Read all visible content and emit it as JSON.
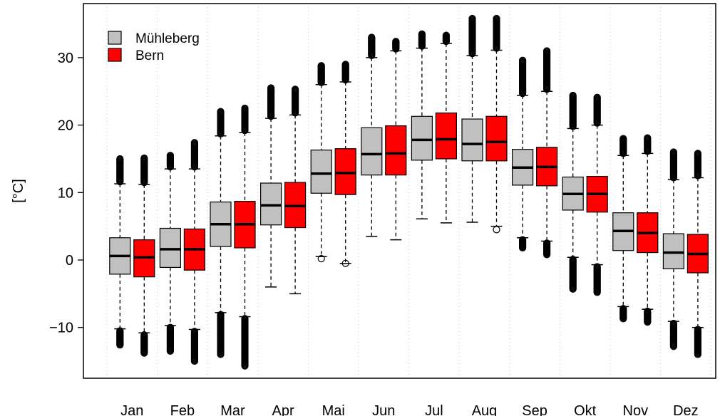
{
  "chart_data": {
    "type": "boxplot",
    "ylabel": "[°C]",
    "ylim": [
      -17.5,
      37.5
    ],
    "yticks": [
      -10,
      0,
      10,
      20,
      30
    ],
    "grid": "vertical dotted",
    "legend_position": "top-left",
    "categories": [
      "Jan",
      "Feb",
      "Mar",
      "Apr",
      "Mai",
      "Jun",
      "Jul",
      "Aug",
      "Sep",
      "Okt",
      "Nov",
      "Dez"
    ],
    "series": [
      {
        "name": "Mühleberg",
        "color": "#c0c0c0",
        "boxes": [
          {
            "whisker_low": -10.2,
            "q1": -2.1,
            "median": 0.6,
            "q3": 3.3,
            "whisker_high": 11.3,
            "outliers_low": [
              -12.6,
              -11.0
            ],
            "outliers_high": [
              13.5,
              15.0
            ]
          },
          {
            "whisker_low": -9.7,
            "q1": -1.1,
            "median": 1.6,
            "q3": 4.7,
            "whisker_high": 13.5,
            "outliers_low": [
              -13.5,
              -11.0
            ],
            "outliers_high": [
              14.5,
              15.5
            ]
          },
          {
            "whisker_low": -7.8,
            "q1": 2.0,
            "median": 5.3,
            "q3": 8.6,
            "whisker_high": 18.4,
            "outliers_low": [
              -14.0,
              -12.0,
              -10.0
            ],
            "outliers_high": [
              20.0,
              22.0
            ]
          },
          {
            "whisker_low": -4.0,
            "q1": 5.2,
            "median": 8.1,
            "q3": 11.4,
            "whisker_high": 21.0,
            "outliers_low": [],
            "outliers_high": [
              23.0,
              25.5
            ]
          },
          {
            "whisker_low": 0.5,
            "q1": 9.9,
            "median": 12.8,
            "q3": 16.3,
            "whisker_high": 26.0,
            "outliers_low": [
              0.2
            ],
            "outliers_high": [
              27.5,
              28.8
            ]
          },
          {
            "whisker_low": 3.5,
            "q1": 12.6,
            "median": 15.7,
            "q3": 19.6,
            "whisker_high": 30.0,
            "outliers_low": [],
            "outliers_high": [
              31.5,
              33.0
            ]
          },
          {
            "whisker_low": 6.1,
            "q1": 14.8,
            "median": 17.8,
            "q3": 21.3,
            "whisker_high": 31.4,
            "outliers_low": [],
            "outliers_high": [
              32.5,
              33.5
            ]
          },
          {
            "whisker_low": 5.6,
            "q1": 14.7,
            "median": 17.2,
            "q3": 20.9,
            "whisker_high": 30.3,
            "outliers_low": [],
            "outliers_high": [
              33.0,
              35.8
            ]
          },
          {
            "whisker_low": 3.3,
            "q1": 11.1,
            "median": 13.7,
            "q3": 16.4,
            "whisker_high": 24.4,
            "outliers_low": [
              1.8,
              2.5
            ],
            "outliers_high": [
              27.0,
              29.6
            ]
          },
          {
            "whisker_low": 0.4,
            "q1": 7.4,
            "median": 9.8,
            "q3": 12.3,
            "whisker_high": 19.5,
            "outliers_low": [
              -4.3,
              -2.0
            ],
            "outliers_high": [
              22.0,
              24.4
            ]
          },
          {
            "whisker_low": -6.9,
            "q1": 1.4,
            "median": 4.3,
            "q3": 7.0,
            "whisker_high": 15.5,
            "outliers_low": [
              -8.7,
              -7.5
            ],
            "outliers_high": [
              17.0,
              18.0
            ]
          },
          {
            "whisker_low": -9.1,
            "q1": -1.3,
            "median": 1.1,
            "q3": 3.9,
            "whisker_high": 11.9,
            "outliers_low": [
              -12.8,
              -10.5
            ],
            "outliers_high": [
              14.0,
              16.0
            ]
          }
        ]
      },
      {
        "name": "Bern",
        "color": "#ff0000",
        "boxes": [
          {
            "whisker_low": -10.8,
            "q1": -2.5,
            "median": 0.4,
            "q3": 3.0,
            "whisker_high": 11.2,
            "outliers_low": [
              -13.8,
              -12.0
            ],
            "outliers_high": [
              13.5,
              15.1
            ]
          },
          {
            "whisker_low": -10.3,
            "q1": -1.5,
            "median": 1.6,
            "q3": 4.6,
            "whisker_high": 13.5,
            "outliers_low": [
              -15.0,
              -12.5
            ],
            "outliers_high": [
              15.5,
              17.4
            ]
          },
          {
            "whisker_low": -8.4,
            "q1": 1.8,
            "median": 5.3,
            "q3": 8.7,
            "whisker_high": 18.9,
            "outliers_low": [
              -15.7,
              -13.0,
              -10.5
            ],
            "outliers_high": [
              20.5,
              22.5
            ]
          },
          {
            "whisker_low": -5.0,
            "q1": 4.8,
            "median": 8.0,
            "q3": 11.5,
            "whisker_high": 21.5,
            "outliers_low": [],
            "outliers_high": [
              23.5,
              25.3
            ]
          },
          {
            "whisker_low": -0.5,
            "q1": 9.7,
            "median": 12.9,
            "q3": 16.5,
            "whisker_high": 26.4,
            "outliers_low": [
              -0.5
            ],
            "outliers_high": [
              28.0,
              29.0
            ]
          },
          {
            "whisker_low": 3.0,
            "q1": 12.6,
            "median": 15.8,
            "q3": 19.9,
            "whisker_high": 31.0,
            "outliers_low": [],
            "outliers_high": [
              31.5,
              32.4
            ]
          },
          {
            "whisker_low": 5.5,
            "q1": 15.0,
            "median": 17.9,
            "q3": 21.8,
            "whisker_high": 32.1,
            "outliers_low": [],
            "outliers_high": [
              32.7,
              33.3
            ]
          },
          {
            "whisker_low": 5.0,
            "q1": 14.7,
            "median": 17.5,
            "q3": 21.3,
            "whisker_high": 31.1,
            "outliers_low": [
              4.5
            ],
            "outliers_high": [
              33.5,
              35.8
            ]
          },
          {
            "whisker_low": 2.8,
            "q1": 11.0,
            "median": 13.8,
            "q3": 16.7,
            "whisker_high": 25.0,
            "outliers_low": [
              0.8,
              2.0
            ],
            "outliers_high": [
              28.0,
              31.0
            ]
          },
          {
            "whisker_low": -0.7,
            "q1": 7.1,
            "median": 9.8,
            "q3": 12.4,
            "whisker_high": 20.0,
            "outliers_low": [
              -4.8,
              -2.5
            ],
            "outliers_high": [
              22.0,
              24.1
            ]
          },
          {
            "whisker_low": -7.3,
            "q1": 1.1,
            "median": 4.0,
            "q3": 7.0,
            "whisker_high": 15.8,
            "outliers_low": [
              -9.2,
              -8.0
            ],
            "outliers_high": [
              17.0,
              18.1
            ]
          },
          {
            "whisker_low": -10.0,
            "q1": -1.9,
            "median": 0.9,
            "q3": 3.8,
            "whisker_high": 12.2,
            "outliers_low": [
              -14.0,
              -11.5
            ],
            "outliers_high": [
              14.0,
              15.8
            ]
          }
        ]
      }
    ]
  }
}
